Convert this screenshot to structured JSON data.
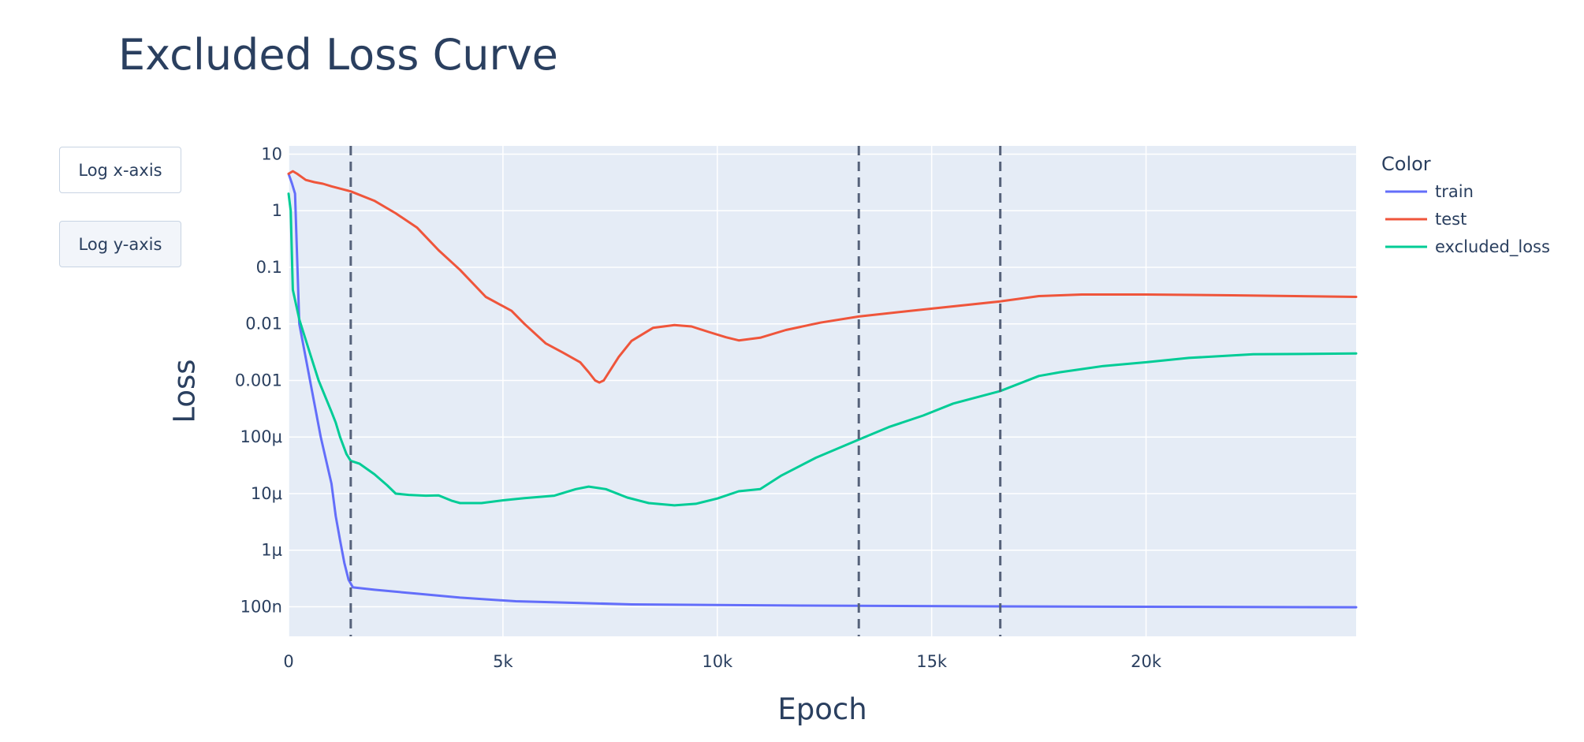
{
  "title": "Excluded Loss Curve",
  "controls": {
    "log_x_label": "Log x-axis",
    "log_y_label": "Log y-axis"
  },
  "colors": {
    "train": "#636efa",
    "test": "#ef553b",
    "excluded_loss": "#00cc96",
    "plot_bg": "#e5ecf6",
    "grid": "#ffffff",
    "vline": "#56627a",
    "text": "#2a3f5f"
  },
  "chart_data": {
    "type": "line",
    "title": "Excluded Loss Curve",
    "xlabel": "Epoch",
    "ylabel": "Loss",
    "y_scale": "log",
    "xlim": [
      0,
      24900
    ],
    "ylim": [
      3e-08,
      14
    ],
    "x_ticks": [
      {
        "value": 0,
        "label": "0"
      },
      {
        "value": 5000,
        "label": "5k"
      },
      {
        "value": 10000,
        "label": "10k"
      },
      {
        "value": 15000,
        "label": "15k"
      },
      {
        "value": 20000,
        "label": "20k"
      }
    ],
    "y_ticks": [
      {
        "value": 10,
        "label": "10"
      },
      {
        "value": 1,
        "label": "1"
      },
      {
        "value": 0.1,
        "label": "0.1"
      },
      {
        "value": 0.01,
        "label": "0.01"
      },
      {
        "value": 0.001,
        "label": "0.001"
      },
      {
        "value": 0.0001,
        "label": "100μ"
      },
      {
        "value": 1e-05,
        "label": "10μ"
      },
      {
        "value": 1e-06,
        "label": "1μ"
      },
      {
        "value": 1e-07,
        "label": "100n"
      }
    ],
    "grid": true,
    "legend": {
      "title": "Color",
      "position": "right"
    },
    "vertical_lines": [
      1450,
      13300,
      16600
    ],
    "series": [
      {
        "name": "train",
        "color": "#636efa",
        "points": [
          [
            0,
            4.5
          ],
          [
            80,
            3
          ],
          [
            150,
            2
          ],
          [
            250,
            0.01
          ],
          [
            500,
            0.001
          ],
          [
            750,
            0.0001
          ],
          [
            1000,
            1.5e-05
          ],
          [
            1100,
            4e-06
          ],
          [
            1200,
            1.5e-06
          ],
          [
            1300,
            6e-07
          ],
          [
            1400,
            3e-07
          ],
          [
            1500,
            2.2e-07
          ],
          [
            2000,
            2e-07
          ],
          [
            3000,
            1.7e-07
          ],
          [
            4000,
            1.45e-07
          ],
          [
            5300,
            1.25e-07
          ],
          [
            8000,
            1.1e-07
          ],
          [
            12000,
            1.05e-07
          ],
          [
            16000,
            1.02e-07
          ],
          [
            20000,
            1e-07
          ],
          [
            24900,
            9.8e-08
          ]
        ]
      },
      {
        "name": "test",
        "color": "#ef553b",
        "points": [
          [
            0,
            4.5
          ],
          [
            100,
            5
          ],
          [
            200,
            4.5
          ],
          [
            400,
            3.5
          ],
          [
            600,
            3.2
          ],
          [
            800,
            3
          ],
          [
            1000,
            2.7
          ],
          [
            1450,
            2.2
          ],
          [
            2000,
            1.5
          ],
          [
            2500,
            0.9
          ],
          [
            3000,
            0.5
          ],
          [
            3500,
            0.2
          ],
          [
            4000,
            0.09
          ],
          [
            4600,
            0.03
          ],
          [
            5200,
            0.017
          ],
          [
            5500,
            0.01
          ],
          [
            6000,
            0.0045
          ],
          [
            6400,
            0.0031
          ],
          [
            6800,
            0.0021
          ],
          [
            7000,
            0.0014
          ],
          [
            7150,
            0.001
          ],
          [
            7250,
            0.00092
          ],
          [
            7350,
            0.001
          ],
          [
            7700,
            0.0026
          ],
          [
            8000,
            0.005
          ],
          [
            8500,
            0.0085
          ],
          [
            9000,
            0.0095
          ],
          [
            9400,
            0.009
          ],
          [
            9800,
            0.0072
          ],
          [
            10200,
            0.0058
          ],
          [
            10500,
            0.0051
          ],
          [
            11000,
            0.0057
          ],
          [
            11600,
            0.0078
          ],
          [
            12400,
            0.0105
          ],
          [
            13300,
            0.0135
          ],
          [
            14500,
            0.017
          ],
          [
            16600,
            0.025
          ],
          [
            17500,
            0.031
          ],
          [
            18500,
            0.033
          ],
          [
            20000,
            0.033
          ],
          [
            22000,
            0.032
          ],
          [
            24900,
            0.03
          ]
        ]
      },
      {
        "name": "excluded_loss",
        "color": "#00cc96",
        "points": [
          [
            0,
            2
          ],
          [
            50,
            1
          ],
          [
            100,
            0.04
          ],
          [
            250,
            0.012
          ],
          [
            500,
            0.003
          ],
          [
            700,
            0.001
          ],
          [
            1000,
            0.00028
          ],
          [
            1100,
            0.00018
          ],
          [
            1200,
            0.0001
          ],
          [
            1350,
            5e-05
          ],
          [
            1450,
            3.8e-05
          ],
          [
            1650,
            3.4e-05
          ],
          [
            2000,
            2.2e-05
          ],
          [
            2300,
            1.4e-05
          ],
          [
            2500,
            1e-05
          ],
          [
            2800,
            9.5e-06
          ],
          [
            3200,
            9.2e-06
          ],
          [
            3500,
            9.3e-06
          ],
          [
            3800,
            7.5e-06
          ],
          [
            4000,
            6.8e-06
          ],
          [
            4500,
            6.8e-06
          ],
          [
            5000,
            7.6e-06
          ],
          [
            5500,
            8.3e-06
          ],
          [
            6200,
            9.2e-06
          ],
          [
            6700,
            1.2e-05
          ],
          [
            7000,
            1.33e-05
          ],
          [
            7400,
            1.2e-05
          ],
          [
            7900,
            8.5e-06
          ],
          [
            8400,
            6.8e-06
          ],
          [
            9000,
            6.2e-06
          ],
          [
            9500,
            6.6e-06
          ],
          [
            10000,
            8.2e-06
          ],
          [
            10500,
            1.1e-05
          ],
          [
            11000,
            1.2e-05
          ],
          [
            11500,
            2.1e-05
          ],
          [
            12300,
            4.3e-05
          ],
          [
            13300,
            9e-05
          ],
          [
            14000,
            0.00015
          ],
          [
            14800,
            0.00024
          ],
          [
            15500,
            0.00039
          ],
          [
            16600,
            0.00065
          ],
          [
            17500,
            0.0012
          ],
          [
            18000,
            0.0014
          ],
          [
            19000,
            0.0018
          ],
          [
            20000,
            0.0021
          ],
          [
            21000,
            0.0025
          ],
          [
            22500,
            0.0029
          ],
          [
            24900,
            0.003
          ]
        ]
      }
    ]
  }
}
